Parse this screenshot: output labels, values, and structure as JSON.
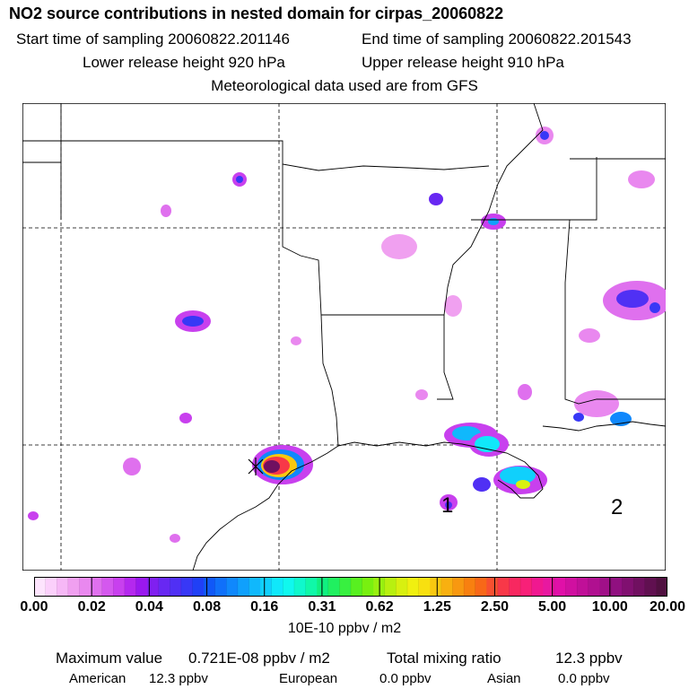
{
  "header": {
    "title": "NO2 source contributions in nested domain for cirpas_20060822",
    "start_sampling": "Start time of sampling 20060822.201146",
    "end_sampling": "End time of sampling 20060822.201543",
    "lower_release": "Lower release height  920 hPa",
    "upper_release": "Upper release height  910 hPa",
    "met_data": "Meteorological data used are from GFS"
  },
  "map": {
    "region_labels": [
      "1",
      "2"
    ],
    "colors": {
      "boundary": "#000000",
      "gridline": "#000000",
      "marker": "#000000"
    }
  },
  "colorbar": {
    "tick_labels": [
      "0.00",
      "0.02",
      "0.04",
      "0.08",
      "0.16",
      "0.31",
      "0.62",
      "1.25",
      "2.50",
      "5.00",
      "10.00",
      "20.00"
    ],
    "colors": [
      "#fde4fd",
      "#fbd0fb",
      "#f6b8f6",
      "#f0a0f0",
      "#e988ef",
      "#df70ee",
      "#d458ee",
      "#c840ee",
      "#b428ee",
      "#9a18ee",
      "#8020f0",
      "#6828f2",
      "#5030f4",
      "#3838f6",
      "#2040f6",
      "#1058f8",
      "#1070fa",
      "#1088fc",
      "#10a0fc",
      "#10b8fc",
      "#10d0fc",
      "#10e8fa",
      "#10f8ee",
      "#10f8cc",
      "#10f8a8",
      "#10f080",
      "#20f060",
      "#38f040",
      "#58f020",
      "#78f010",
      "#98f010",
      "#b8f010",
      "#d8f010",
      "#f0f010",
      "#f8e010",
      "#f8c810",
      "#f8b010",
      "#f89810",
      "#f88010",
      "#f86818",
      "#f85030",
      "#f83848",
      "#f82860",
      "#f82078",
      "#f01890",
      "#e818a0",
      "#e010a8",
      "#d010a0",
      "#c01098",
      "#b01090",
      "#a01088",
      "#901080",
      "#801070",
      "#701060",
      "#601050",
      "#501040"
    ]
  },
  "units": "10E-10 ppbv / m2",
  "summary": {
    "max_label": "Maximum value",
    "max_value": "0.721E-08 ppbv / m2",
    "total_label": "Total mixing ratio",
    "total_value": "12.3 ppbv",
    "american_label": "American",
    "american_value": "12.3 ppbv",
    "european_label": "European",
    "european_value": "0.0 ppbv",
    "asian_label": "Asian",
    "asian_value": "0.0 ppbv"
  }
}
